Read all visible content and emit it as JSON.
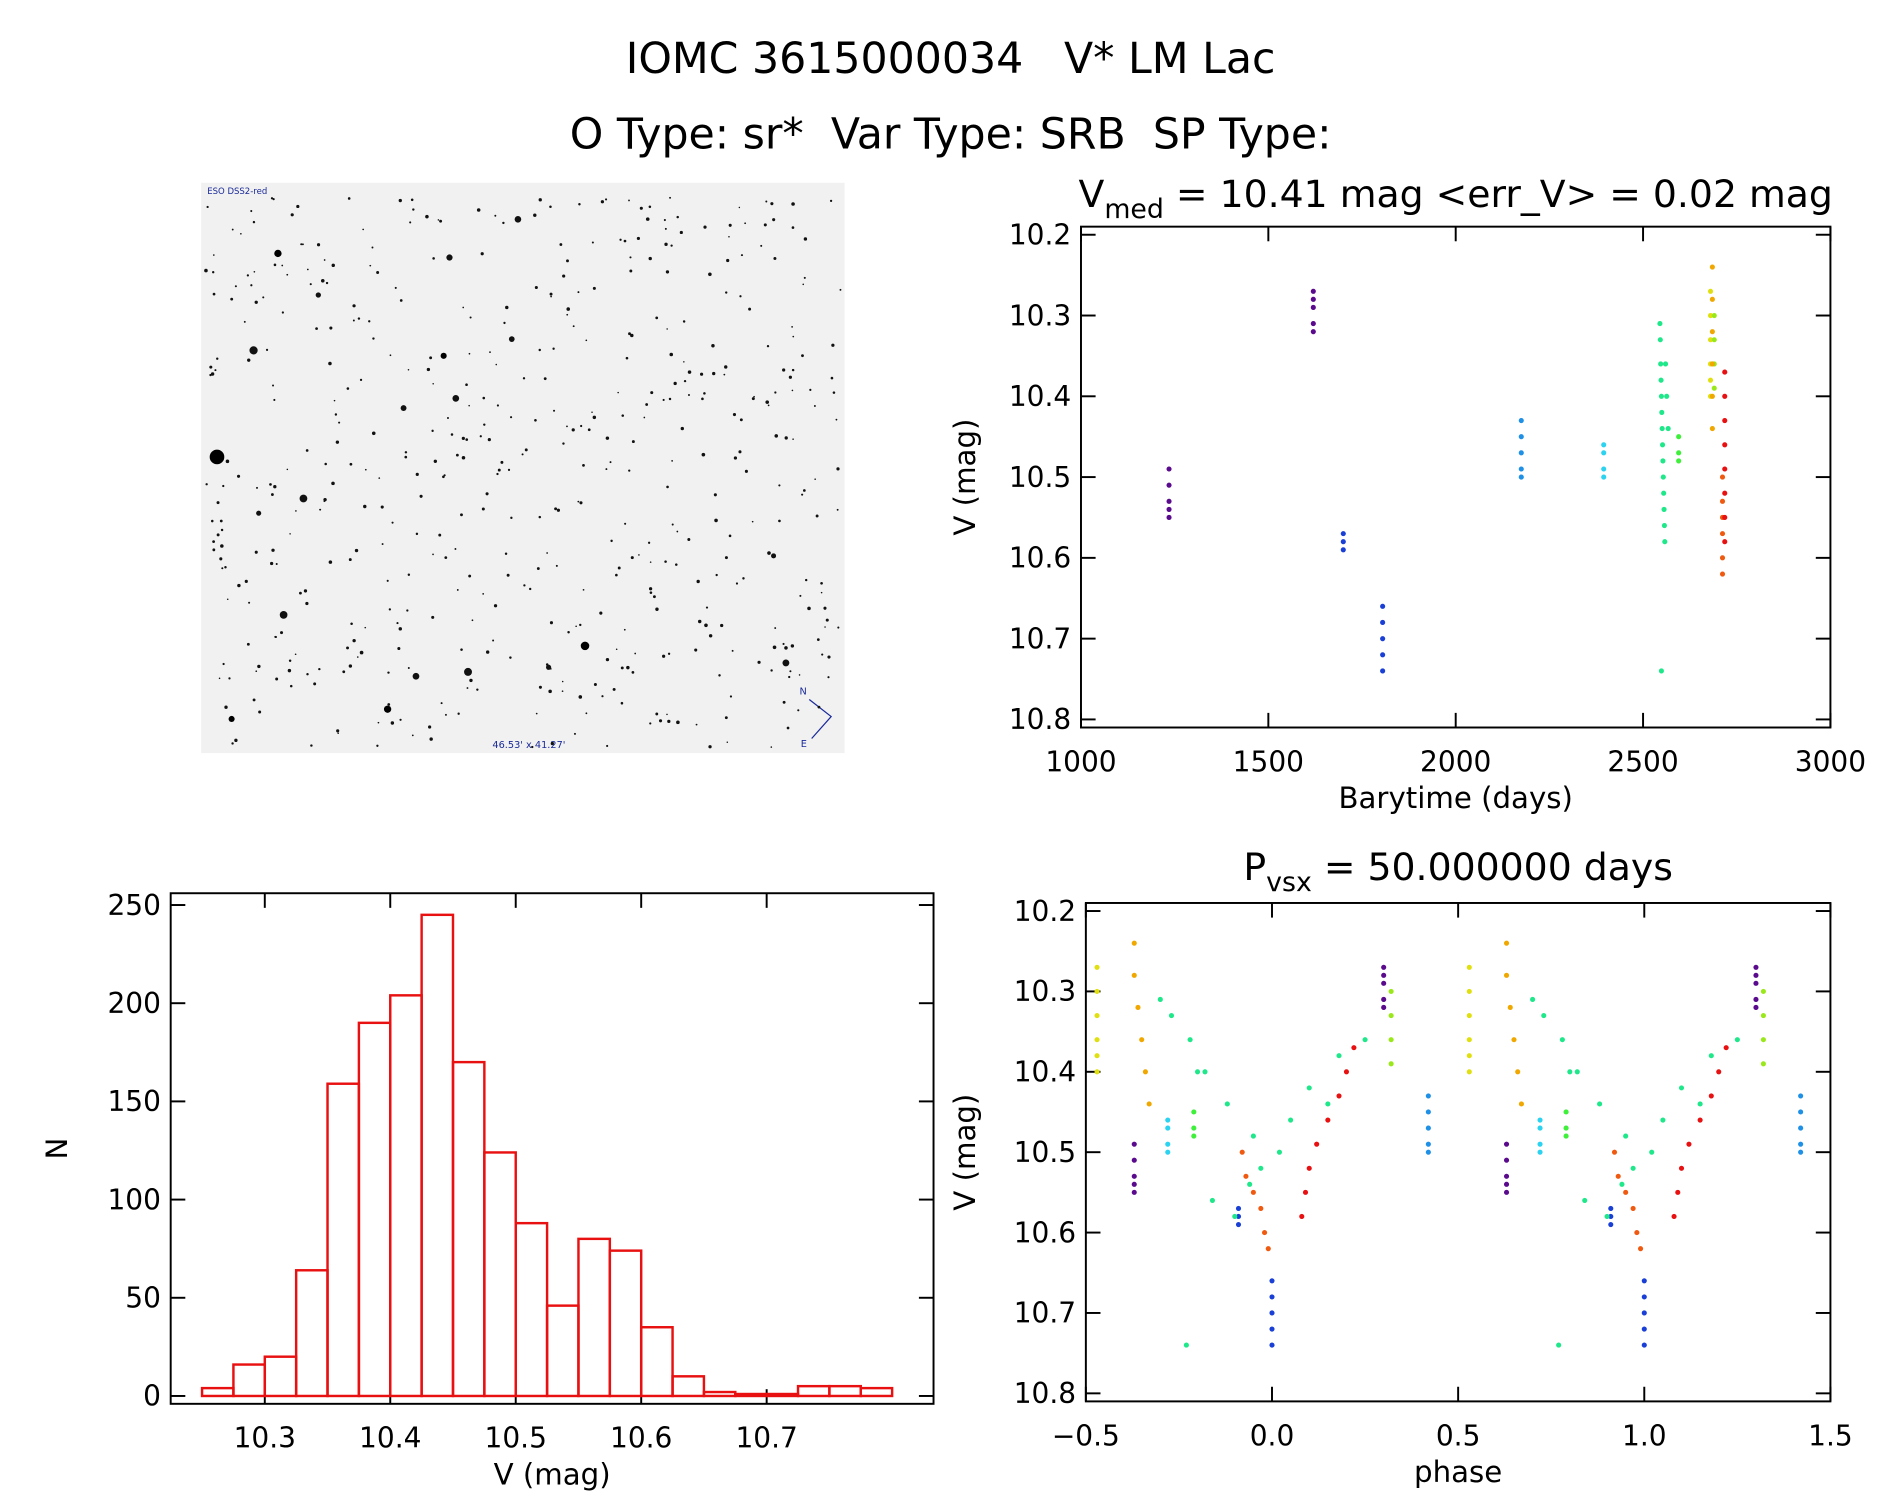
{
  "header": {
    "title": "IOMC 3615000034   V* LM Lac",
    "subtitle": "O Type: sr*  Var Type: SRB  SP Type:"
  },
  "image": {
    "survey": "ESO DSS2-red",
    "size": "46.53' x 41.27'",
    "north": "N",
    "east": "E"
  },
  "chart_data": [
    {
      "type": "scatter",
      "title": {
        "main": "V",
        "sub": "med",
        "rest": " = 10.41 mag <err_V> = 0.02 mag"
      },
      "x_label": "Barytime (days)",
      "y_label": "V (mag)",
      "xlim": [
        1000,
        3000
      ],
      "xticks": [
        1000,
        1500,
        2000,
        2500,
        3000
      ],
      "ylim": [
        10.81,
        10.19
      ],
      "yticks": [
        10.2,
        10.3,
        10.4,
        10.5,
        10.6,
        10.7,
        10.8
      ],
      "series": [
        {
          "color": "#5a0a8c",
          "x": [
            1235,
            1235,
            1235,
            1235,
            1235,
            1620,
            1620,
            1620,
            1620,
            1620
          ],
          "values": [
            10.49,
            10.51,
            10.53,
            10.54,
            10.55,
            10.27,
            10.28,
            10.29,
            10.31,
            10.32
          ]
        },
        {
          "color": "#1a3fd6",
          "x": [
            1700,
            1700,
            1700,
            1805,
            1805,
            1805,
            1805,
            1805
          ],
          "values": [
            10.57,
            10.58,
            10.59,
            10.66,
            10.68,
            10.7,
            10.72,
            10.74
          ]
        },
        {
          "color": "#1e90e6",
          "x": [
            2175,
            2175,
            2175,
            2175,
            2175
          ],
          "values": [
            10.43,
            10.45,
            10.47,
            10.49,
            10.5
          ]
        },
        {
          "color": "#2bd3f0",
          "x": [
            2395,
            2395,
            2395,
            2395
          ],
          "values": [
            10.46,
            10.47,
            10.49,
            10.5
          ]
        },
        {
          "color": "#1ee88a",
          "x": [
            2545,
            2546,
            2547,
            2548,
            2549,
            2550,
            2551,
            2552,
            2553,
            2554,
            2555,
            2556,
            2557,
            2558,
            2560,
            2563,
            2567,
            2549
          ],
          "values": [
            10.31,
            10.33,
            10.36,
            10.38,
            10.4,
            10.42,
            10.44,
            10.46,
            10.48,
            10.5,
            10.52,
            10.54,
            10.56,
            10.58,
            10.36,
            10.4,
            10.44,
            10.74
          ]
        },
        {
          "color": "#3ef03a",
          "x": [
            2595,
            2595,
            2595
          ],
          "values": [
            10.45,
            10.47,
            10.48
          ]
        },
        {
          "color": "#e0e010",
          "x": [
            2680,
            2680,
            2680,
            2680,
            2680,
            2680
          ],
          "values": [
            10.27,
            10.3,
            10.33,
            10.36,
            10.38,
            10.4
          ]
        },
        {
          "color": "#9be81a",
          "x": [
            2690,
            2690,
            2690,
            2690
          ],
          "values": [
            10.3,
            10.33,
            10.36,
            10.39
          ]
        },
        {
          "color": "#f0a800",
          "x": [
            2685,
            2685,
            2685,
            2685,
            2685,
            2685
          ],
          "values": [
            10.24,
            10.28,
            10.32,
            10.36,
            10.4,
            10.44
          ]
        },
        {
          "color": "#f05a10",
          "x": [
            2712,
            2712,
            2712,
            2712,
            2712,
            2712
          ],
          "values": [
            10.5,
            10.53,
            10.55,
            10.57,
            10.6,
            10.62
          ]
        },
        {
          "color": "#e81010",
          "x": [
            2718,
            2718,
            2718,
            2718,
            2718,
            2718,
            2718,
            2718
          ],
          "values": [
            10.37,
            10.4,
            10.43,
            10.46,
            10.49,
            10.52,
            10.55,
            10.58
          ]
        }
      ]
    },
    {
      "type": "scatter",
      "title": {
        "main": "P",
        "sub": "vsx",
        "rest": " = 50.000000 days"
      },
      "x_label": "phase",
      "y_label": "V (mag)",
      "xlim": [
        -0.5,
        1.5
      ],
      "xticks": [
        {
          "value": -0.5,
          "label": "−0.5"
        },
        {
          "value": 0,
          "label": "0.0"
        },
        {
          "value": 0.5,
          "label": "0.5"
        },
        {
          "value": 1,
          "label": "1.0"
        },
        {
          "value": 1.5,
          "label": "1.5"
        }
      ],
      "ylim": [
        10.81,
        10.19
      ],
      "yticks": [
        10.2,
        10.3,
        10.4,
        10.5,
        10.6,
        10.7,
        10.8
      ],
      "series": [
        {
          "color": "#5a0a8c",
          "x": [
            -0.37,
            -0.37,
            -0.37,
            -0.37,
            -0.37,
            0.3,
            0.3,
            0.3,
            0.3,
            0.3,
            0.63,
            0.63,
            0.63,
            0.63,
            0.63,
            1.3,
            1.3,
            1.3,
            1.3,
            1.3
          ],
          "values": [
            10.49,
            10.51,
            10.53,
            10.54,
            10.55,
            10.27,
            10.28,
            10.29,
            10.31,
            10.32,
            10.49,
            10.51,
            10.53,
            10.54,
            10.55,
            10.27,
            10.28,
            10.29,
            10.31,
            10.32
          ]
        },
        {
          "color": "#1a3fd6",
          "x": [
            -0.09,
            -0.09,
            -0.09,
            0,
            0,
            0,
            0,
            0,
            0.91,
            0.91,
            0.91,
            1,
            1,
            1,
            1,
            1
          ],
          "values": [
            10.57,
            10.58,
            10.59,
            10.66,
            10.68,
            10.7,
            10.72,
            10.74,
            10.57,
            10.58,
            10.59,
            10.66,
            10.68,
            10.7,
            10.72,
            10.74
          ]
        },
        {
          "color": "#1e90e6",
          "x": [
            0.42,
            0.42,
            0.42,
            0.42,
            0.42,
            1.42,
            1.42,
            1.42,
            1.42,
            1.42
          ],
          "values": [
            10.43,
            10.45,
            10.47,
            10.49,
            10.5,
            10.43,
            10.45,
            10.47,
            10.49,
            10.5
          ]
        },
        {
          "color": "#2bd3f0",
          "x": [
            -0.28,
            -0.28,
            -0.28,
            -0.28,
            0.72,
            0.72,
            0.72,
            0.72
          ],
          "values": [
            10.46,
            10.47,
            10.49,
            10.5,
            10.46,
            10.47,
            10.49,
            10.5
          ]
        },
        {
          "color": "#1ee88a",
          "x": [
            -0.3,
            -0.27,
            -0.22,
            0.18,
            -0.18,
            0.1,
            -0.12,
            0.05,
            -0.05,
            0.02,
            -0.03,
            -0.06,
            -0.16,
            -0.1,
            0.25,
            -0.2,
            0.15,
            -0.23,
            0.7,
            0.73,
            0.78,
            1.18,
            0.82,
            1.1,
            0.88,
            1.05,
            0.95,
            1.02,
            0.97,
            0.94,
            0.84,
            0.9,
            1.25,
            0.8,
            1.15,
            0.77
          ],
          "values": [
            10.31,
            10.33,
            10.36,
            10.38,
            10.4,
            10.42,
            10.44,
            10.46,
            10.48,
            10.5,
            10.52,
            10.54,
            10.56,
            10.58,
            10.36,
            10.4,
            10.44,
            10.74,
            10.31,
            10.33,
            10.36,
            10.38,
            10.4,
            10.42,
            10.44,
            10.46,
            10.48,
            10.5,
            10.52,
            10.54,
            10.56,
            10.58,
            10.36,
            10.4,
            10.44,
            10.74
          ]
        },
        {
          "color": "#3ef03a",
          "x": [
            -0.21,
            -0.21,
            -0.21,
            0.79,
            0.79,
            0.79
          ],
          "values": [
            10.45,
            10.47,
            10.48,
            10.45,
            10.47,
            10.48
          ]
        },
        {
          "color": "#e0e010",
          "x": [
            -0.47,
            -0.47,
            -0.47,
            -0.47,
            -0.47,
            -0.47,
            0.53,
            0.53,
            0.53,
            0.53,
            0.53,
            0.53
          ],
          "values": [
            10.27,
            10.3,
            10.33,
            10.36,
            10.38,
            10.4,
            10.27,
            10.3,
            10.33,
            10.36,
            10.38,
            10.4
          ]
        },
        {
          "color": "#9be81a",
          "x": [
            0.32,
            0.32,
            0.32,
            0.32,
            1.32,
            1.32,
            1.32,
            1.32
          ],
          "values": [
            10.3,
            10.33,
            10.36,
            10.39,
            10.3,
            10.33,
            10.36,
            10.39
          ]
        },
        {
          "color": "#f0a800",
          "x": [
            -0.37,
            -0.37,
            -0.36,
            -0.35,
            -0.34,
            -0.33,
            0.63,
            0.63,
            0.64,
            0.65,
            0.66,
            0.67
          ],
          "values": [
            10.24,
            10.28,
            10.32,
            10.36,
            10.4,
            10.44,
            10.24,
            10.28,
            10.32,
            10.36,
            10.4,
            10.44
          ]
        },
        {
          "color": "#f05a10",
          "x": [
            -0.08,
            -0.07,
            -0.05,
            -0.03,
            -0.02,
            -0.01,
            0.92,
            0.93,
            0.95,
            0.97,
            0.98,
            0.99
          ],
          "values": [
            10.5,
            10.53,
            10.55,
            10.57,
            10.6,
            10.62,
            10.5,
            10.53,
            10.55,
            10.57,
            10.6,
            10.62
          ]
        },
        {
          "color": "#e81010",
          "x": [
            0.22,
            0.2,
            0.18,
            0.15,
            0.12,
            0.1,
            0.09,
            0.08,
            1.22,
            1.2,
            1.18,
            1.15,
            1.12,
            1.1,
            1.09,
            1.08
          ],
          "values": [
            10.37,
            10.4,
            10.43,
            10.46,
            10.49,
            10.52,
            10.55,
            10.58,
            10.37,
            10.4,
            10.43,
            10.46,
            10.49,
            10.52,
            10.55,
            10.58
          ]
        }
      ]
    },
    {
      "type": "histogram",
      "x_label": "V (mag)",
      "y_label": "N",
      "color": "#e81010",
      "bins": [
        10.25,
        10.275,
        10.3,
        10.325,
        10.35,
        10.375,
        10.4,
        10.425,
        10.45,
        10.475,
        10.5,
        10.525,
        10.55,
        10.575,
        10.6,
        10.625,
        10.65,
        10.675,
        10.7,
        10.725,
        10.75,
        10.775,
        10.8
      ],
      "values": [
        4,
        16,
        20,
        64,
        159,
        190,
        204,
        245,
        170,
        124,
        88,
        46,
        80,
        74,
        35,
        10,
        2,
        1,
        1,
        5,
        5,
        4
      ],
      "xlim": [
        10.225,
        10.833
      ],
      "xticks": [
        10.3,
        10.4,
        10.5,
        10.6,
        10.7
      ],
      "ylim": [
        -4,
        256
      ],
      "yticks": [
        0,
        50,
        100,
        150,
        200,
        250
      ]
    }
  ]
}
